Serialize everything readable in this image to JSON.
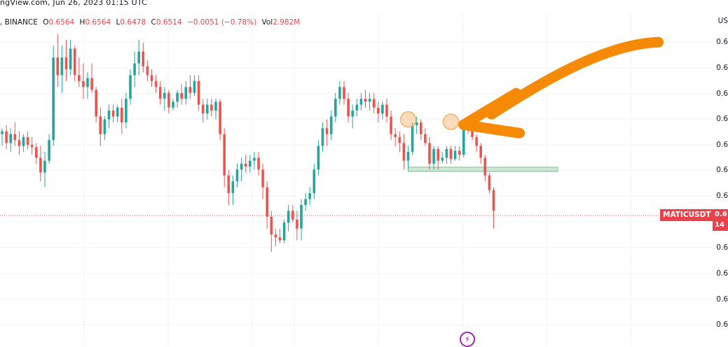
{
  "header": {
    "source_line": "ngView.com, Jun 26, 2023 01:15 UTC"
  },
  "ohlc": {
    "prefix": ", BINANCE",
    "open_label": "O",
    "open": "0.6564",
    "high_label": "H",
    "high": "0.6564",
    "low_label": "L",
    "low": "0.6478",
    "close_label": "C",
    "close": "0.6514",
    "change": "−0.0051 (−0.78%)",
    "vol_label": "Vol",
    "vol": "2.982M"
  },
  "price_axis": {
    "currency": "US",
    "labels": [
      "0.6",
      "0.6",
      "0.6",
      "0.6",
      "0.6",
      "0.6",
      "0.6",
      "0.6",
      "0.6",
      "0.6",
      "0.6",
      "0.6"
    ]
  },
  "symbol_tag": {
    "symbol": "MATICUSDT",
    "price": "0.6",
    "countdown": "14"
  },
  "colors": {
    "up": "#26a69a",
    "down": "#ef5350",
    "highlight_circle": "#f6b26b",
    "support_zone": "#a8d5b5",
    "arrow": "#f58a07",
    "price_line": "#ef5350"
  },
  "chart_data": {
    "type": "candlestick",
    "ylim": [
      0.609,
      0.66
    ],
    "annotations": [
      {
        "type": "circle",
        "candle_index": 95,
        "price": 0.6445
      },
      {
        "type": "circle",
        "candle_index": 105,
        "price": 0.6441
      },
      {
        "type": "zone",
        "from_index": 95,
        "to_index": 130,
        "price_top": 0.6364,
        "price_bottom": 0.6358
      },
      {
        "type": "arrow",
        "target_candle_index": 106,
        "target_price": 0.6436
      }
    ],
    "candles": [
      {
        "o": 0.642,
        "h": 0.643,
        "l": 0.64,
        "c": 0.6425
      },
      {
        "o": 0.6425,
        "h": 0.6435,
        "l": 0.6395,
        "c": 0.6405
      },
      {
        "o": 0.6405,
        "h": 0.643,
        "l": 0.639,
        "c": 0.642
      },
      {
        "o": 0.642,
        "h": 0.644,
        "l": 0.64,
        "c": 0.641
      },
      {
        "o": 0.641,
        "h": 0.6425,
        "l": 0.6385,
        "c": 0.64
      },
      {
        "o": 0.64,
        "h": 0.642,
        "l": 0.639,
        "c": 0.6415
      },
      {
        "o": 0.6415,
        "h": 0.6425,
        "l": 0.6395,
        "c": 0.6402
      },
      {
        "o": 0.6402,
        "h": 0.6415,
        "l": 0.6385,
        "c": 0.6398
      },
      {
        "o": 0.6398,
        "h": 0.6405,
        "l": 0.637,
        "c": 0.638
      },
      {
        "o": 0.638,
        "h": 0.64,
        "l": 0.634,
        "c": 0.6355
      },
      {
        "o": 0.6355,
        "h": 0.639,
        "l": 0.633,
        "c": 0.6375
      },
      {
        "o": 0.6375,
        "h": 0.642,
        "l": 0.637,
        "c": 0.641
      },
      {
        "o": 0.641,
        "h": 0.657,
        "l": 0.64,
        "c": 0.655
      },
      {
        "o": 0.655,
        "h": 0.659,
        "l": 0.65,
        "c": 0.652
      },
      {
        "o": 0.652,
        "h": 0.657,
        "l": 0.649,
        "c": 0.655
      },
      {
        "o": 0.655,
        "h": 0.658,
        "l": 0.651,
        "c": 0.653
      },
      {
        "o": 0.653,
        "h": 0.658,
        "l": 0.652,
        "c": 0.6565
      },
      {
        "o": 0.6565,
        "h": 0.657,
        "l": 0.651,
        "c": 0.652
      },
      {
        "o": 0.652,
        "h": 0.655,
        "l": 0.65,
        "c": 0.651
      },
      {
        "o": 0.651,
        "h": 0.654,
        "l": 0.648,
        "c": 0.65
      },
      {
        "o": 0.65,
        "h": 0.6525,
        "l": 0.648,
        "c": 0.6515
      },
      {
        "o": 0.6515,
        "h": 0.654,
        "l": 0.649,
        "c": 0.6495
      },
      {
        "o": 0.6495,
        "h": 0.65,
        "l": 0.644,
        "c": 0.645
      },
      {
        "o": 0.645,
        "h": 0.6465,
        "l": 0.64,
        "c": 0.642
      },
      {
        "o": 0.642,
        "h": 0.645,
        "l": 0.641,
        "c": 0.6445
      },
      {
        "o": 0.6445,
        "h": 0.647,
        "l": 0.643,
        "c": 0.646
      },
      {
        "o": 0.646,
        "h": 0.647,
        "l": 0.644,
        "c": 0.645
      },
      {
        "o": 0.645,
        "h": 0.647,
        "l": 0.644,
        "c": 0.6465
      },
      {
        "o": 0.6465,
        "h": 0.648,
        "l": 0.642,
        "c": 0.644
      },
      {
        "o": 0.644,
        "h": 0.649,
        "l": 0.643,
        "c": 0.648
      },
      {
        "o": 0.648,
        "h": 0.653,
        "l": 0.647,
        "c": 0.652
      },
      {
        "o": 0.652,
        "h": 0.656,
        "l": 0.65,
        "c": 0.654
      },
      {
        "o": 0.654,
        "h": 0.658,
        "l": 0.652,
        "c": 0.656
      },
      {
        "o": 0.656,
        "h": 0.6575,
        "l": 0.6525,
        "c": 0.6535
      },
      {
        "o": 0.6535,
        "h": 0.6545,
        "l": 0.651,
        "c": 0.652
      },
      {
        "o": 0.652,
        "h": 0.653,
        "l": 0.65,
        "c": 0.651
      },
      {
        "o": 0.651,
        "h": 0.652,
        "l": 0.649,
        "c": 0.65
      },
      {
        "o": 0.65,
        "h": 0.651,
        "l": 0.647,
        "c": 0.648
      },
      {
        "o": 0.648,
        "h": 0.65,
        "l": 0.646,
        "c": 0.649
      },
      {
        "o": 0.649,
        "h": 0.6495,
        "l": 0.6455,
        "c": 0.6465
      },
      {
        "o": 0.6465,
        "h": 0.648,
        "l": 0.646,
        "c": 0.6475
      },
      {
        "o": 0.6475,
        "h": 0.6495,
        "l": 0.6465,
        "c": 0.649
      },
      {
        "o": 0.649,
        "h": 0.6505,
        "l": 0.647,
        "c": 0.648
      },
      {
        "o": 0.648,
        "h": 0.651,
        "l": 0.647,
        "c": 0.65
      },
      {
        "o": 0.65,
        "h": 0.652,
        "l": 0.648,
        "c": 0.649
      },
      {
        "o": 0.649,
        "h": 0.652,
        "l": 0.6485,
        "c": 0.651
      },
      {
        "o": 0.651,
        "h": 0.652,
        "l": 0.646,
        "c": 0.647
      },
      {
        "o": 0.647,
        "h": 0.648,
        "l": 0.644,
        "c": 0.6455
      },
      {
        "o": 0.6455,
        "h": 0.648,
        "l": 0.6445,
        "c": 0.647
      },
      {
        "o": 0.647,
        "h": 0.648,
        "l": 0.645,
        "c": 0.646
      },
      {
        "o": 0.646,
        "h": 0.648,
        "l": 0.6445,
        "c": 0.6475
      },
      {
        "o": 0.6475,
        "h": 0.648,
        "l": 0.641,
        "c": 0.642
      },
      {
        "o": 0.642,
        "h": 0.643,
        "l": 0.633,
        "c": 0.635
      },
      {
        "o": 0.635,
        "h": 0.636,
        "l": 0.63,
        "c": 0.632
      },
      {
        "o": 0.632,
        "h": 0.635,
        "l": 0.63,
        "c": 0.634
      },
      {
        "o": 0.634,
        "h": 0.637,
        "l": 0.633,
        "c": 0.636
      },
      {
        "o": 0.636,
        "h": 0.638,
        "l": 0.634,
        "c": 0.637
      },
      {
        "o": 0.637,
        "h": 0.6385,
        "l": 0.6355,
        "c": 0.6365
      },
      {
        "o": 0.6365,
        "h": 0.6385,
        "l": 0.6355,
        "c": 0.6375
      },
      {
        "o": 0.6375,
        "h": 0.639,
        "l": 0.636,
        "c": 0.638
      },
      {
        "o": 0.638,
        "h": 0.639,
        "l": 0.635,
        "c": 0.636
      },
      {
        "o": 0.636,
        "h": 0.637,
        "l": 0.631,
        "c": 0.633
      },
      {
        "o": 0.633,
        "h": 0.634,
        "l": 0.626,
        "c": 0.628
      },
      {
        "o": 0.628,
        "h": 0.629,
        "l": 0.622,
        "c": 0.625
      },
      {
        "o": 0.625,
        "h": 0.626,
        "l": 0.623,
        "c": 0.6245
      },
      {
        "o": 0.6245,
        "h": 0.626,
        "l": 0.6235,
        "c": 0.624
      },
      {
        "o": 0.624,
        "h": 0.6275,
        "l": 0.6235,
        "c": 0.627
      },
      {
        "o": 0.627,
        "h": 0.63,
        "l": 0.6255,
        "c": 0.629
      },
      {
        "o": 0.629,
        "h": 0.63,
        "l": 0.627,
        "c": 0.6275
      },
      {
        "o": 0.6275,
        "h": 0.629,
        "l": 0.624,
        "c": 0.626
      },
      {
        "o": 0.626,
        "h": 0.631,
        "l": 0.624,
        "c": 0.63
      },
      {
        "o": 0.63,
        "h": 0.632,
        "l": 0.629,
        "c": 0.631
      },
      {
        "o": 0.631,
        "h": 0.633,
        "l": 0.63,
        "c": 0.632
      },
      {
        "o": 0.632,
        "h": 0.637,
        "l": 0.631,
        "c": 0.636
      },
      {
        "o": 0.636,
        "h": 0.641,
        "l": 0.635,
        "c": 0.64
      },
      {
        "o": 0.64,
        "h": 0.644,
        "l": 0.639,
        "c": 0.643
      },
      {
        "o": 0.643,
        "h": 0.6445,
        "l": 0.64,
        "c": 0.642
      },
      {
        "o": 0.642,
        "h": 0.646,
        "l": 0.641,
        "c": 0.645
      },
      {
        "o": 0.645,
        "h": 0.649,
        "l": 0.644,
        "c": 0.648
      },
      {
        "o": 0.648,
        "h": 0.651,
        "l": 0.647,
        "c": 0.65
      },
      {
        "o": 0.65,
        "h": 0.651,
        "l": 0.647,
        "c": 0.648
      },
      {
        "o": 0.648,
        "h": 0.649,
        "l": 0.644,
        "c": 0.645
      },
      {
        "o": 0.645,
        "h": 0.647,
        "l": 0.643,
        "c": 0.646
      },
      {
        "o": 0.646,
        "h": 0.648,
        "l": 0.645,
        "c": 0.647
      },
      {
        "o": 0.647,
        "h": 0.649,
        "l": 0.646,
        "c": 0.648
      },
      {
        "o": 0.648,
        "h": 0.6495,
        "l": 0.6465,
        "c": 0.6475
      },
      {
        "o": 0.6475,
        "h": 0.649,
        "l": 0.646,
        "c": 0.648
      },
      {
        "o": 0.648,
        "h": 0.649,
        "l": 0.6455,
        "c": 0.6465
      },
      {
        "o": 0.6465,
        "h": 0.6475,
        "l": 0.644,
        "c": 0.6455
      },
      {
        "o": 0.6455,
        "h": 0.6475,
        "l": 0.6445,
        "c": 0.647
      },
      {
        "o": 0.647,
        "h": 0.648,
        "l": 0.644,
        "c": 0.645
      },
      {
        "o": 0.645,
        "h": 0.646,
        "l": 0.641,
        "c": 0.642
      },
      {
        "o": 0.642,
        "h": 0.643,
        "l": 0.64,
        "c": 0.6415
      },
      {
        "o": 0.6415,
        "h": 0.6425,
        "l": 0.639,
        "c": 0.6405
      },
      {
        "o": 0.6405,
        "h": 0.642,
        "l": 0.636,
        "c": 0.6375
      },
      {
        "o": 0.6375,
        "h": 0.64,
        "l": 0.636,
        "c": 0.639
      },
      {
        "o": 0.639,
        "h": 0.644,
        "l": 0.6385,
        "c": 0.6435
      },
      {
        "o": 0.6435,
        "h": 0.645,
        "l": 0.642,
        "c": 0.644
      },
      {
        "o": 0.644,
        "h": 0.6445,
        "l": 0.641,
        "c": 0.642
      },
      {
        "o": 0.642,
        "h": 0.643,
        "l": 0.64,
        "c": 0.6405
      },
      {
        "o": 0.6405,
        "h": 0.6415,
        "l": 0.636,
        "c": 0.637
      },
      {
        "o": 0.637,
        "h": 0.64,
        "l": 0.636,
        "c": 0.6395
      },
      {
        "o": 0.6395,
        "h": 0.64,
        "l": 0.636,
        "c": 0.6375
      },
      {
        "o": 0.6375,
        "h": 0.639,
        "l": 0.637,
        "c": 0.638
      },
      {
        "o": 0.638,
        "h": 0.64,
        "l": 0.637,
        "c": 0.6395
      },
      {
        "o": 0.6395,
        "h": 0.64,
        "l": 0.637,
        "c": 0.6378
      },
      {
        "o": 0.6378,
        "h": 0.64,
        "l": 0.6375,
        "c": 0.6392
      },
      {
        "o": 0.6392,
        "h": 0.64,
        "l": 0.6375,
        "c": 0.6385
      },
      {
        "o": 0.6385,
        "h": 0.6445,
        "l": 0.638,
        "c": 0.644
      },
      {
        "o": 0.644,
        "h": 0.6445,
        "l": 0.642,
        "c": 0.643
      },
      {
        "o": 0.643,
        "h": 0.6435,
        "l": 0.641,
        "c": 0.6415
      },
      {
        "o": 0.6415,
        "h": 0.642,
        "l": 0.639,
        "c": 0.64
      },
      {
        "o": 0.64,
        "h": 0.6405,
        "l": 0.637,
        "c": 0.638
      },
      {
        "o": 0.638,
        "h": 0.6385,
        "l": 0.634,
        "c": 0.635
      },
      {
        "o": 0.635,
        "h": 0.6355,
        "l": 0.632,
        "c": 0.6325
      },
      {
        "o": 0.6325,
        "h": 0.633,
        "l": 0.626,
        "c": 0.629
      }
    ]
  }
}
